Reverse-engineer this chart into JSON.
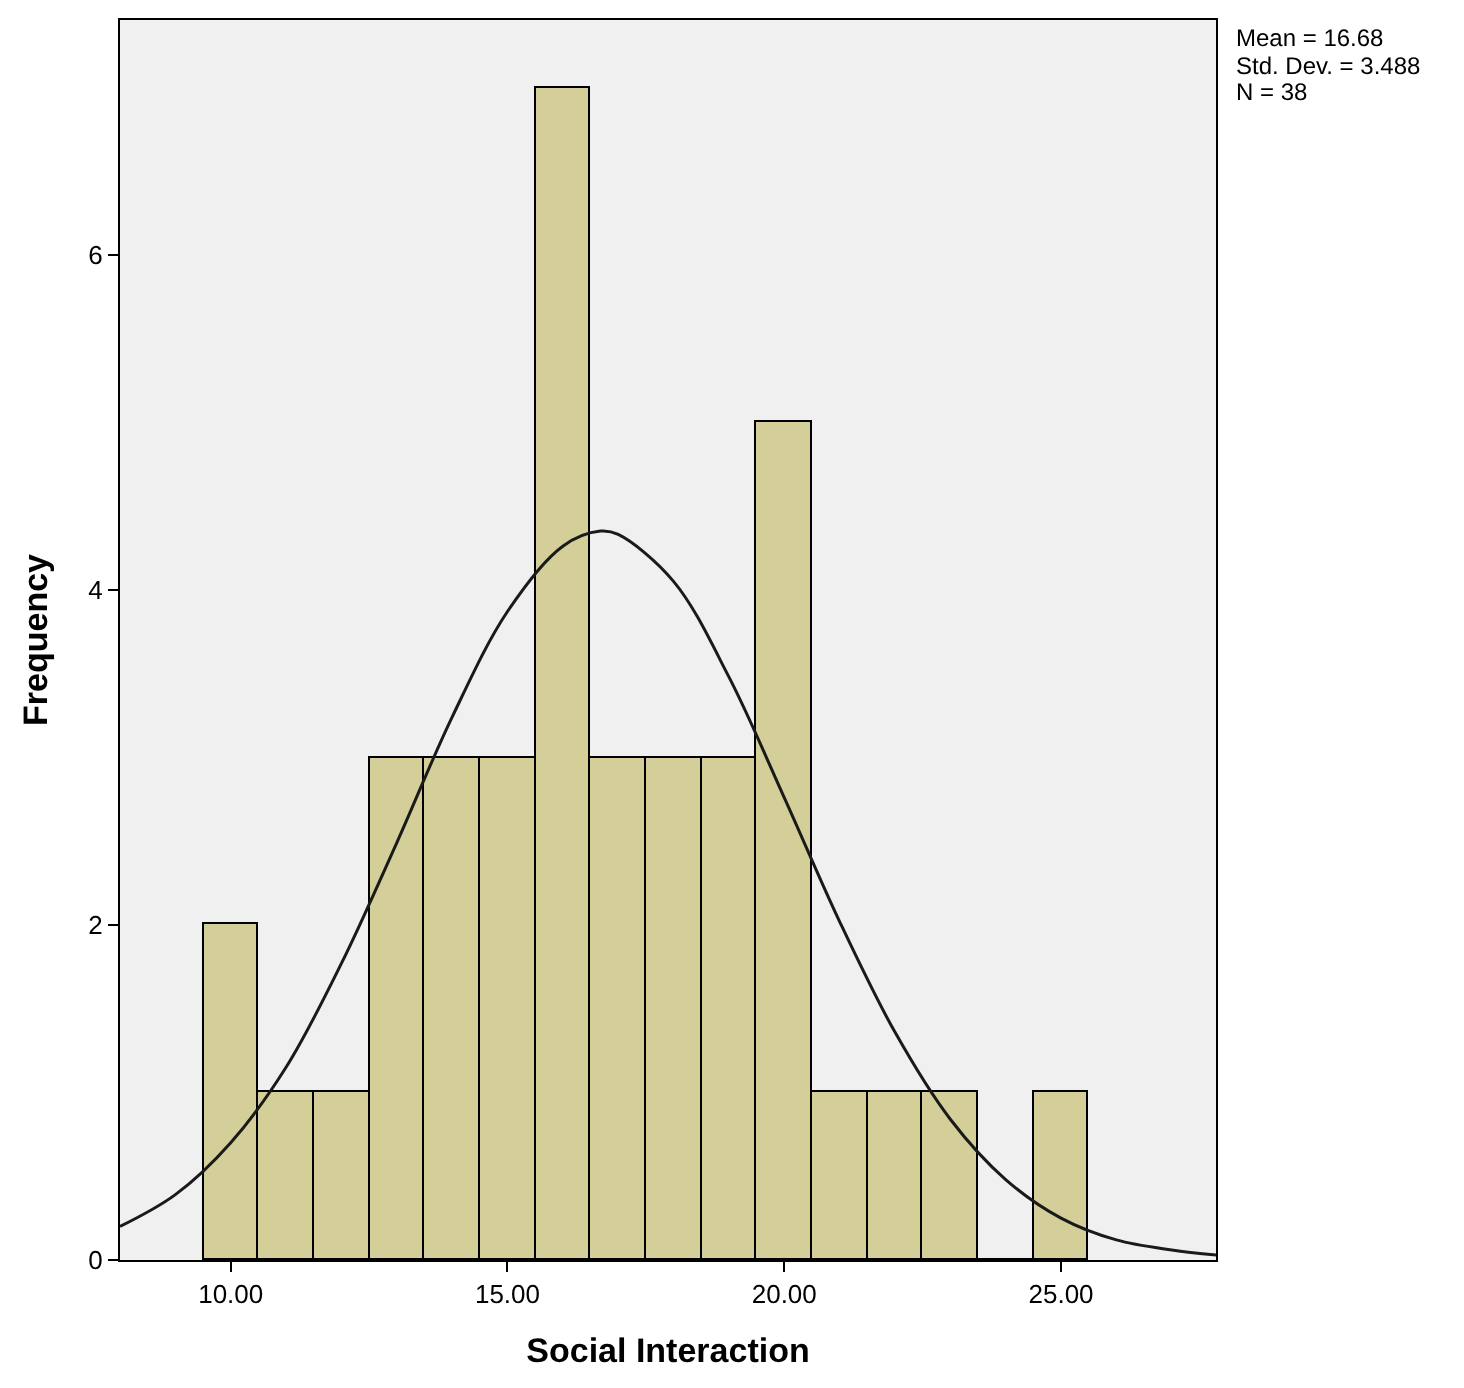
{
  "chart_data": {
    "type": "histogram",
    "xlabel": "Social Interaction",
    "ylabel": "Frequency",
    "bins": [
      9.5,
      10.5,
      11.5,
      12.5,
      13.5,
      14.5,
      15.5,
      16.5,
      17.5,
      18.5,
      19.5,
      20.5,
      21.5,
      22.5,
      23.5,
      24.5,
      25.5
    ],
    "series": [
      {
        "color": "#d4cf99",
        "values": [
          2,
          1,
          1,
          3,
          3,
          3,
          7,
          3,
          3,
          3,
          5,
          1,
          1,
          1,
          0,
          1
        ]
      },
      {
        "type": "line",
        "color": "#1a1a1a",
        "x": [
          8,
          9,
          10,
          11,
          12,
          13,
          14,
          15,
          16,
          16.68,
          17,
          18,
          19,
          20,
          21,
          22,
          23,
          24,
          25,
          26,
          27,
          27.8
        ],
        "values": [
          0.2,
          0.39,
          0.7,
          1.15,
          1.77,
          2.49,
          3.24,
          3.87,
          4.26,
          4.35,
          4.33,
          4.05,
          3.48,
          2.76,
          2.02,
          1.36,
          0.84,
          0.48,
          0.25,
          0.12,
          0.06,
          0.03
        ]
      }
    ],
    "xlim": [
      8,
      27.8
    ],
    "ylim": [
      0,
      7.4
    ],
    "xticks": [
      {
        "value": 10,
        "label": "10.00"
      },
      {
        "value": 15,
        "label": "15.00"
      },
      {
        "value": 20,
        "label": "20.00"
      },
      {
        "value": 25,
        "label": "25.00"
      }
    ],
    "yticks": [
      0,
      2,
      4,
      6
    ],
    "annotations": [
      "Mean = 16.68",
      "Std. Dev. = 3.488",
      "N = 38"
    ],
    "grid": false
  }
}
